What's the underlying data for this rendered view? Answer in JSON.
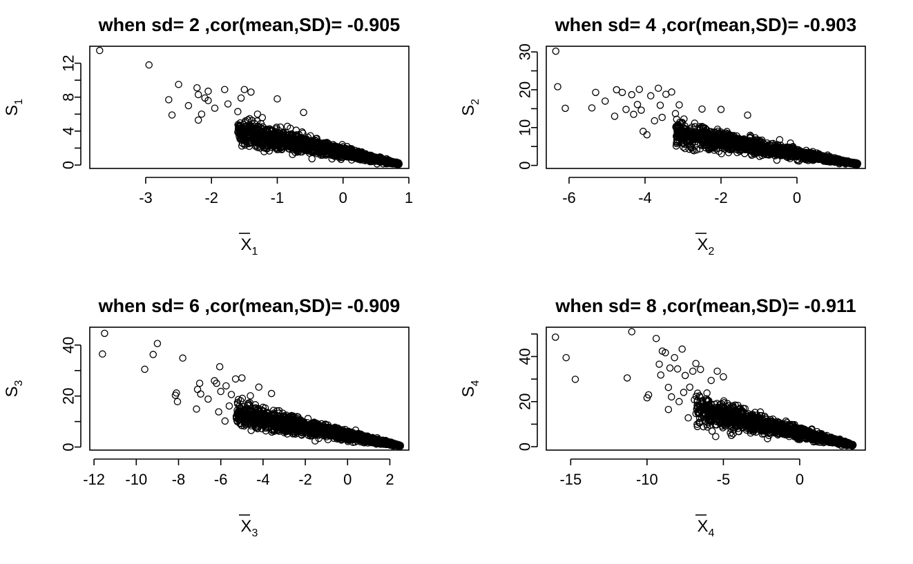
{
  "chart_data": [
    {
      "type": "scatter",
      "title": "when sd= 2 ,cor(mean,SD)= -0.905",
      "xlabel_base": "X",
      "xlabel_sub": "1",
      "ylabel_base": "S",
      "ylabel_sub": "1",
      "xlim": [
        -3.85,
        1.0
      ],
      "ylim": [
        -0.4,
        14.0
      ],
      "xticks": [
        -3,
        -2,
        -1,
        0,
        1
      ],
      "yticks": [
        0,
        4,
        8,
        12
      ],
      "yminor": [
        2,
        6,
        10
      ],
      "outliers": [
        [
          -3.7,
          13.5
        ],
        [
          -2.95,
          11.8
        ],
        [
          -2.65,
          7.7
        ],
        [
          -2.6,
          5.9
        ],
        [
          -2.5,
          9.5
        ],
        [
          -2.35,
          7.0
        ],
        [
          -2.22,
          9.1
        ],
        [
          -2.2,
          8.3
        ],
        [
          -2.2,
          5.3
        ],
        [
          -2.15,
          6.0
        ],
        [
          -2.1,
          7.9
        ],
        [
          -2.05,
          8.7
        ],
        [
          -2.05,
          7.6
        ],
        [
          -1.95,
          6.7
        ],
        [
          -1.8,
          8.9
        ],
        [
          -1.75,
          7.2
        ],
        [
          -1.6,
          6.3
        ],
        [
          -1.55,
          7.9
        ],
        [
          -1.5,
          8.9
        ],
        [
          -1.4,
          8.6
        ],
        [
          -1.3,
          6.0
        ],
        [
          -1.0,
          7.8
        ],
        [
          -0.6,
          6.2
        ]
      ],
      "cloud": {
        "n": 1500,
        "x_from": -1.6,
        "x_to": 0.85,
        "y_at_start": 4.0,
        "y_at_end": 0.15,
        "spread_at_start": 1.4,
        "spread_at_end": 0.1
      }
    },
    {
      "type": "scatter",
      "title": "when sd= 4 ,cor(mean,SD)= -0.903",
      "xlabel_base": "X",
      "xlabel_sub": "2",
      "ylabel_base": "S",
      "ylabel_sub": "2",
      "xlim": [
        -6.6,
        1.8
      ],
      "ylim": [
        -0.8,
        31.5
      ],
      "xticks": [
        -6,
        -4,
        -2,
        0
      ],
      "yticks": [
        0,
        10,
        20,
        30
      ],
      "yminor": [
        5,
        15,
        25
      ],
      "outliers": [
        [
          -6.35,
          30.2
        ],
        [
          -6.3,
          20.8
        ],
        [
          -6.1,
          15.1
        ],
        [
          -5.4,
          15.2
        ],
        [
          -5.3,
          19.3
        ],
        [
          -5.05,
          17.0
        ],
        [
          -4.8,
          13.0
        ],
        [
          -4.75,
          20.0
        ],
        [
          -4.6,
          19.3
        ],
        [
          -4.5,
          14.8
        ],
        [
          -4.35,
          18.7
        ],
        [
          -4.3,
          13.5
        ],
        [
          -4.2,
          16.1
        ],
        [
          -4.15,
          20.1
        ],
        [
          -4.1,
          14.6
        ],
        [
          -4.05,
          9.0
        ],
        [
          -3.95,
          8.1
        ],
        [
          -3.85,
          18.4
        ],
        [
          -3.75,
          11.8
        ],
        [
          -3.65,
          20.4
        ],
        [
          -3.6,
          15.9
        ],
        [
          -3.55,
          12.7
        ],
        [
          -3.45,
          18.8
        ],
        [
          -3.3,
          19.4
        ],
        [
          -3.2,
          13.7
        ],
        [
          -3.1,
          16.0
        ],
        [
          -2.95,
          10.4
        ],
        [
          -2.5,
          14.9
        ],
        [
          -2.0,
          14.8
        ],
        [
          -1.3,
          13.3
        ]
      ],
      "cloud": {
        "n": 1500,
        "x_from": -3.2,
        "x_to": 1.6,
        "y_at_start": 8.5,
        "y_at_end": 0.4,
        "spread_at_start": 3.0,
        "spread_at_end": 0.2
      }
    },
    {
      "type": "scatter",
      "title": "when sd= 6 ,cor(mean,SD)= -0.909",
      "xlabel_base": "X",
      "xlabel_sub": "3",
      "ylabel_base": "S",
      "ylabel_sub": "3",
      "xlim": [
        -12.2,
        2.9
      ],
      "ylim": [
        -1.2,
        47.0
      ],
      "xticks": [
        -12,
        -10,
        -8,
        -6,
        -4,
        -2,
        0,
        2
      ],
      "yticks": [
        0,
        20,
        40
      ],
      "yminor": [
        10,
        30
      ],
      "outliers": [
        [
          -11.5,
          44.6
        ],
        [
          -11.6,
          36.5
        ],
        [
          -9.6,
          30.5
        ],
        [
          -9.2,
          36.3
        ],
        [
          -9.0,
          40.6
        ],
        [
          -8.15,
          20.3
        ],
        [
          -8.1,
          21.2
        ],
        [
          -8.05,
          17.8
        ],
        [
          -7.8,
          34.9
        ],
        [
          -7.15,
          14.9
        ],
        [
          -7.1,
          22.6
        ],
        [
          -7.0,
          25.0
        ],
        [
          -6.95,
          20.8
        ],
        [
          -6.6,
          18.8
        ],
        [
          -6.3,
          26.0
        ],
        [
          -6.2,
          25.0
        ],
        [
          -6.1,
          13.8
        ],
        [
          -6.05,
          31.5
        ],
        [
          -6.0,
          21.8
        ],
        [
          -5.8,
          10.2
        ],
        [
          -5.75,
          24.0
        ],
        [
          -5.6,
          16.1
        ],
        [
          -5.5,
          20.6
        ],
        [
          -5.3,
          26.7
        ],
        [
          -5.0,
          27.1
        ],
        [
          -4.6,
          20.1
        ],
        [
          -4.2,
          23.5
        ],
        [
          -3.6,
          21.0
        ]
      ],
      "cloud": {
        "n": 1500,
        "x_from": -5.3,
        "x_to": 2.5,
        "y_at_start": 13.0,
        "y_at_end": 0.5,
        "spread_at_start": 4.5,
        "spread_at_end": 0.3
      }
    },
    {
      "type": "scatter",
      "title": "when sd= 8 ,cor(mean,SD)= -0.911",
      "xlabel_base": "X",
      "xlabel_sub": "4",
      "ylabel_base": "S",
      "ylabel_sub": "4",
      "xlim": [
        -16.6,
        4.3
      ],
      "ylim": [
        -1.5,
        53.0
      ],
      "xticks": [
        -15,
        -10,
        -5,
        0
      ],
      "yticks": [
        0,
        20,
        40
      ],
      "yminor": [
        10,
        30,
        50
      ],
      "outliers": [
        [
          -16.0,
          48.6
        ],
        [
          -15.3,
          39.5
        ],
        [
          -14.7,
          29.9
        ],
        [
          -11.3,
          30.5
        ],
        [
          -11.0,
          51.0
        ],
        [
          -10.0,
          21.7
        ],
        [
          -9.9,
          23.0
        ],
        [
          -9.4,
          48.0
        ],
        [
          -9.2,
          36.6
        ],
        [
          -9.1,
          31.8
        ],
        [
          -9.0,
          42.4
        ],
        [
          -8.8,
          41.7
        ],
        [
          -8.6,
          16.5
        ],
        [
          -8.6,
          26.3
        ],
        [
          -8.5,
          34.9
        ],
        [
          -8.4,
          22.1
        ],
        [
          -8.2,
          39.5
        ],
        [
          -8.0,
          34.5
        ],
        [
          -7.9,
          20.0
        ],
        [
          -7.7,
          43.3
        ],
        [
          -7.6,
          24.1
        ],
        [
          -7.5,
          31.6
        ],
        [
          -7.3,
          12.8
        ],
        [
          -7.2,
          26.4
        ],
        [
          -7.0,
          33.5
        ],
        [
          -6.9,
          20.8
        ],
        [
          -6.8,
          36.9
        ],
        [
          -6.6,
          10.7
        ],
        [
          -6.5,
          34.3
        ],
        [
          -6.3,
          17.5
        ],
        [
          -5.8,
          29.4
        ],
        [
          -5.4,
          33.5
        ],
        [
          -5.0,
          31.0
        ]
      ],
      "cloud": {
        "n": 1500,
        "x_from": -6.8,
        "x_to": 3.5,
        "y_at_start": 17.0,
        "y_at_end": 0.6,
        "spread_at_start": 6.0,
        "spread_at_end": 0.4
      }
    }
  ]
}
